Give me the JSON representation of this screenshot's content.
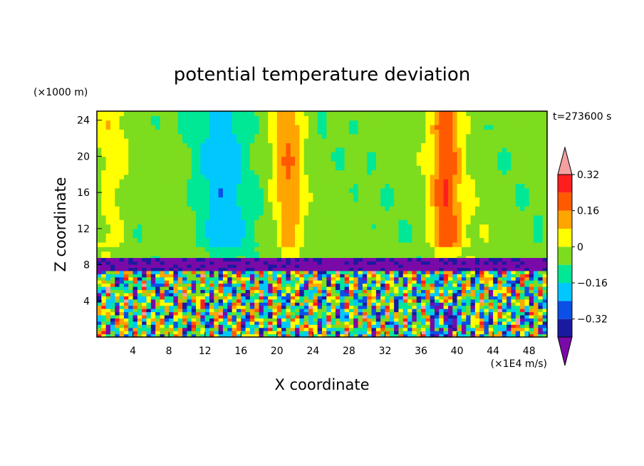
{
  "chart_data": {
    "type": "heatmap",
    "title": "potential temperature deviation",
    "xlabel": "X coordinate",
    "ylabel": "Z coordinate",
    "x_unit_label": "(×1E4 m/s)",
    "y_unit_label": "(×1000 m)",
    "time_label": "t=273600 s",
    "xlim": [
      0,
      50
    ],
    "ylim": [
      0,
      25
    ],
    "x_ticks": [
      4,
      8,
      12,
      16,
      20,
      24,
      28,
      32,
      36,
      40,
      44,
      48
    ],
    "x_tick_labels": [
      "4",
      "8",
      "12",
      "16",
      "20",
      "24",
      "28",
      "32",
      "36",
      "40",
      "44",
      "48"
    ],
    "y_ticks": [
      4,
      8,
      12,
      16,
      20,
      24
    ],
    "y_tick_labels": [
      "4",
      "8",
      "12",
      "16",
      "20",
      "24"
    ],
    "colorbar": {
      "levels": [
        -0.4,
        -0.32,
        -0.24,
        -0.16,
        -0.08,
        0,
        0.08,
        0.16,
        0.24,
        0.32,
        0.4
      ],
      "tick_values": [
        -0.32,
        -0.16,
        0,
        0.16,
        0.32
      ],
      "tick_labels": [
        "−0.32",
        "−0.16",
        "0",
        "0.16",
        "0.32"
      ],
      "colors": [
        "#7a0aa8",
        "#1a1aa0",
        "#0a50e6",
        "#00c8ff",
        "#00e896",
        "#7ddc1e",
        "#ffff00",
        "#ffa500",
        "#ff5a00",
        "#ff1e1e",
        "#f4a0a0"
      ],
      "extend": "both"
    },
    "upper_layer_features": [
      {
        "x_range": [
          0,
          3
        ],
        "value": 0.12,
        "desc": "yellow band left edge"
      },
      {
        "x_range": [
          11,
          17
        ],
        "value": -0.12,
        "desc": "cyan column"
      },
      {
        "x_range": [
          20,
          22.5
        ],
        "value": 0.22,
        "desc": "orange column"
      },
      {
        "x_range": [
          37.5,
          40
        ],
        "value": 0.3,
        "desc": "red-orange column"
      },
      {
        "x_range": [
          40.5,
          43
        ],
        "value": 0.06,
        "desc": "green-yellow column"
      }
    ],
    "boundary_layer_top": 8.5
  }
}
